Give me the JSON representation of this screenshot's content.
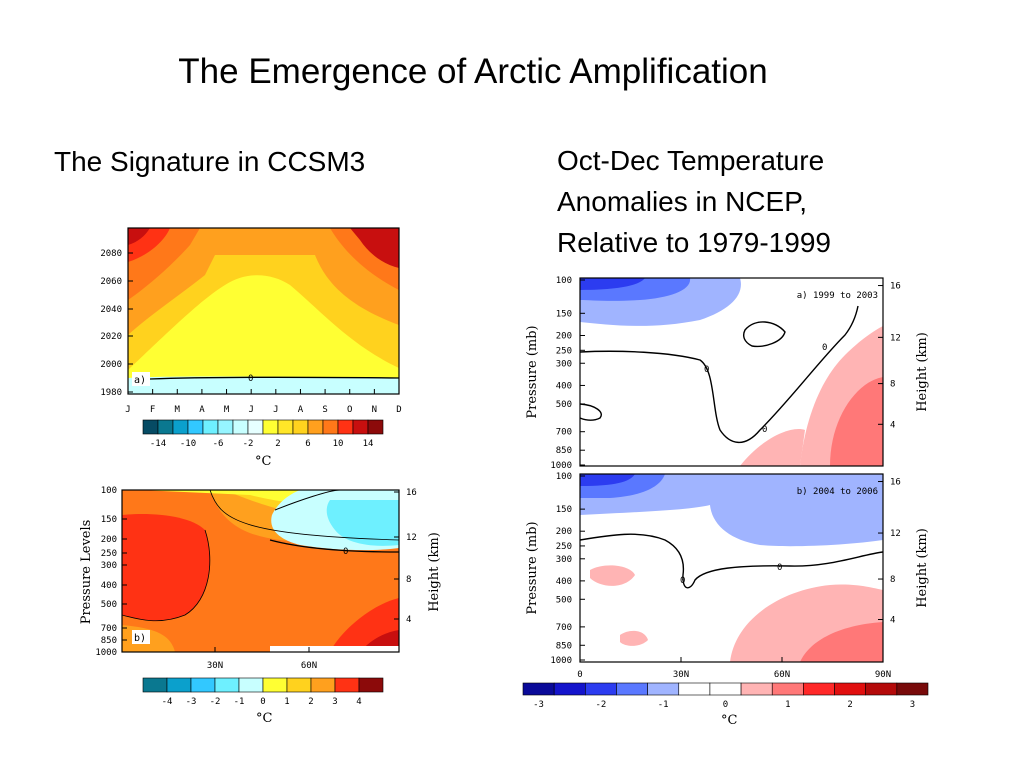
{
  "slide": {
    "title": "The Emergence of Arctic Amplification",
    "left_heading": "The Signature in CCSM3",
    "right_heading": [
      "Oct-Dec Temperature",
      "Anomalies in NCEP,",
      "Relative to 1979-1999"
    ]
  },
  "colors": {
    "warm": [
      "#ffff33",
      "#ffd21e",
      "#ffa01e",
      "#ff7819",
      "#ff3214",
      "#c80f0f",
      "#8c0a0a"
    ],
    "cool": [
      "#c8ffff",
      "#6ef0ff",
      "#32c8ff",
      "#0ba0cc",
      "#0a7890",
      "#064b64"
    ],
    "ncep": [
      "#0a0a99",
      "#1414cc",
      "#2c3cf0",
      "#5a78ff",
      "#a0b4ff",
      "#ffffff",
      "#ffffff",
      "#ffb4b4",
      "#ff7878",
      "#ff2828",
      "#e10f0f",
      "#b40a0a",
      "#780a0a"
    ]
  },
  "chart_data": [
    {
      "id": "ccsm3-a",
      "type": "heatmap",
      "panel_label": "a)",
      "x_ticks": [
        "J",
        "F",
        "M",
        "A",
        "M",
        "J",
        "J",
        "A",
        "S",
        "O",
        "N",
        "D"
      ],
      "y_ticks": [
        "1980",
        "2000",
        "2020",
        "2040",
        "2060",
        "2080"
      ],
      "contour_labels": [
        "0"
      ],
      "colorbar": {
        "ticks": [
          "-14",
          "-10",
          "-6",
          "-2",
          "2",
          "6",
          "10",
          "14"
        ],
        "unit": "°C"
      }
    },
    {
      "id": "ccsm3-b",
      "type": "heatmap",
      "panel_label": "b)",
      "x_ticks": [
        "30N",
        "60N"
      ],
      "y_ticks": [
        "100",
        "150",
        "200",
        "250",
        "300",
        "400",
        "500",
        "700",
        "850",
        "1000"
      ],
      "ylabel": "Pressure Levels",
      "y2_ticks": [
        "4",
        "8",
        "12",
        "16"
      ],
      "y2label": "Height (km)",
      "contour_labels": [
        "0"
      ],
      "colorbar": {
        "ticks": [
          "-4",
          "-3",
          "-2",
          "-1",
          "0",
          "1",
          "2",
          "3",
          "4"
        ],
        "unit": "°C"
      }
    },
    {
      "id": "ncep-a",
      "type": "heatmap",
      "panel_label": "a) 1999 to 2003",
      "y_ticks": [
        "100",
        "150",
        "200",
        "250",
        "300",
        "400",
        "500",
        "700",
        "850",
        "1000"
      ],
      "ylabel": "Pressure (mb)",
      "y2_ticks": [
        "4",
        "8",
        "12",
        "16"
      ],
      "y2label": "Height (km)",
      "contour_labels": [
        "0",
        "0",
        "0"
      ]
    },
    {
      "id": "ncep-b",
      "type": "heatmap",
      "panel_label": "b) 2004 to 2006",
      "x_ticks": [
        "0",
        "30N",
        "60N",
        "90N"
      ],
      "y_ticks": [
        "100",
        "150",
        "200",
        "250",
        "300",
        "400",
        "500",
        "700",
        "850",
        "1000"
      ],
      "ylabel": "Pressure (mb)",
      "y2_ticks": [
        "4",
        "8",
        "12",
        "16"
      ],
      "y2label": "Height (km)",
      "contour_labels": [
        "0",
        "0"
      ],
      "colorbar": {
        "ticks": [
          "-3",
          "-2",
          "-1",
          "0",
          "1",
          "2",
          "3"
        ],
        "unit": "°C"
      }
    }
  ]
}
